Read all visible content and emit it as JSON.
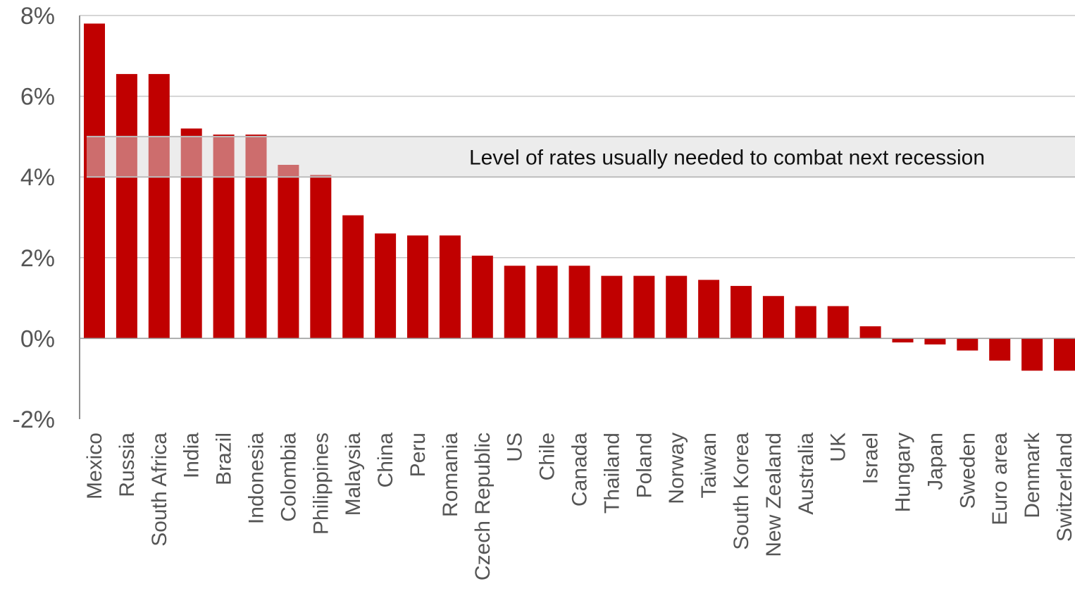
{
  "chart_data": {
    "type": "bar",
    "title": "",
    "xlabel": "",
    "ylabel": "",
    "ylim": [
      -2,
      8
    ],
    "yticks": [
      {
        "value": 8,
        "label": "8%"
      },
      {
        "value": 6,
        "label": "6%"
      },
      {
        "value": 4,
        "label": "4%"
      },
      {
        "value": 2,
        "label": "2%"
      },
      {
        "value": 0,
        "label": "0%"
      },
      {
        "value": -2,
        "label": "-2%"
      }
    ],
    "grid": true,
    "categories": [
      "Mexico",
      "Russia",
      "South Africa",
      "India",
      "Brazil",
      "Indonesia",
      "Colombia",
      "Philippines",
      "Malaysia",
      "China",
      "Peru",
      "Romania",
      "Czech Republic",
      "US",
      "Chile",
      "Canada",
      "Thailand",
      "Poland",
      "Norway",
      "Taiwan",
      "South Korea",
      "New Zealand",
      "Australia",
      "UK",
      "Israel",
      "Hungary",
      "Japan",
      "Sweden",
      "Euro area",
      "Denmark",
      "Switzerland"
    ],
    "values": [
      7.8,
      6.55,
      6.55,
      5.2,
      5.05,
      5.05,
      4.3,
      4.05,
      3.05,
      2.6,
      2.55,
      2.55,
      2.05,
      1.8,
      1.8,
      1.8,
      1.55,
      1.55,
      1.55,
      1.45,
      1.3,
      1.05,
      0.8,
      0.8,
      0.3,
      -0.1,
      -0.15,
      -0.3,
      -0.55,
      -0.8,
      -0.8
    ],
    "bar_color": "#c00000",
    "band": {
      "from": 4,
      "to": 5,
      "label": "Level of rates usually needed to combat next recession",
      "color": "#d9d9d9"
    }
  }
}
